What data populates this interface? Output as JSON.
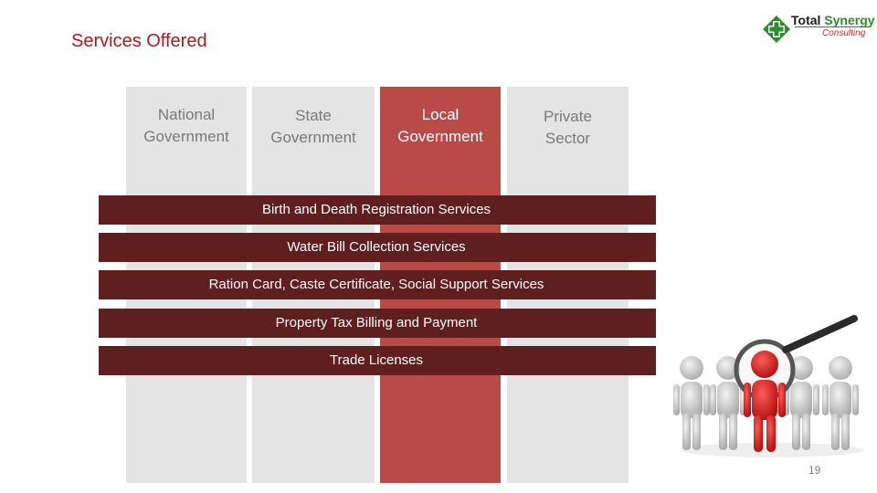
{
  "title": "Services Offered",
  "logo": {
    "word1": "Total",
    "word2": "Synergy",
    "sub": "Consulting"
  },
  "columns": [
    {
      "label_line1": "National",
      "label_line2": "Government"
    },
    {
      "label_line1": "State",
      "label_line2": "Government"
    },
    {
      "label_line1": "Local",
      "label_line2": "Government"
    },
    {
      "label_line1": "Private",
      "label_line2": "Sector"
    }
  ],
  "services": [
    "Birth and Death Registration Services",
    "Water Bill Collection Services",
    "Ration Card, Caste Certificate, Social Support Services",
    "Property Tax Billing and Payment",
    "Trade Licenses"
  ],
  "page_number": "19",
  "colors": {
    "title": "#a01d22",
    "active_column": "#b94a48",
    "column": "#e4e4e4",
    "band": "#5f1f1f"
  },
  "icons": {
    "logo": "green-cross-logo-icon",
    "figure": "magnifier-people-icon"
  }
}
